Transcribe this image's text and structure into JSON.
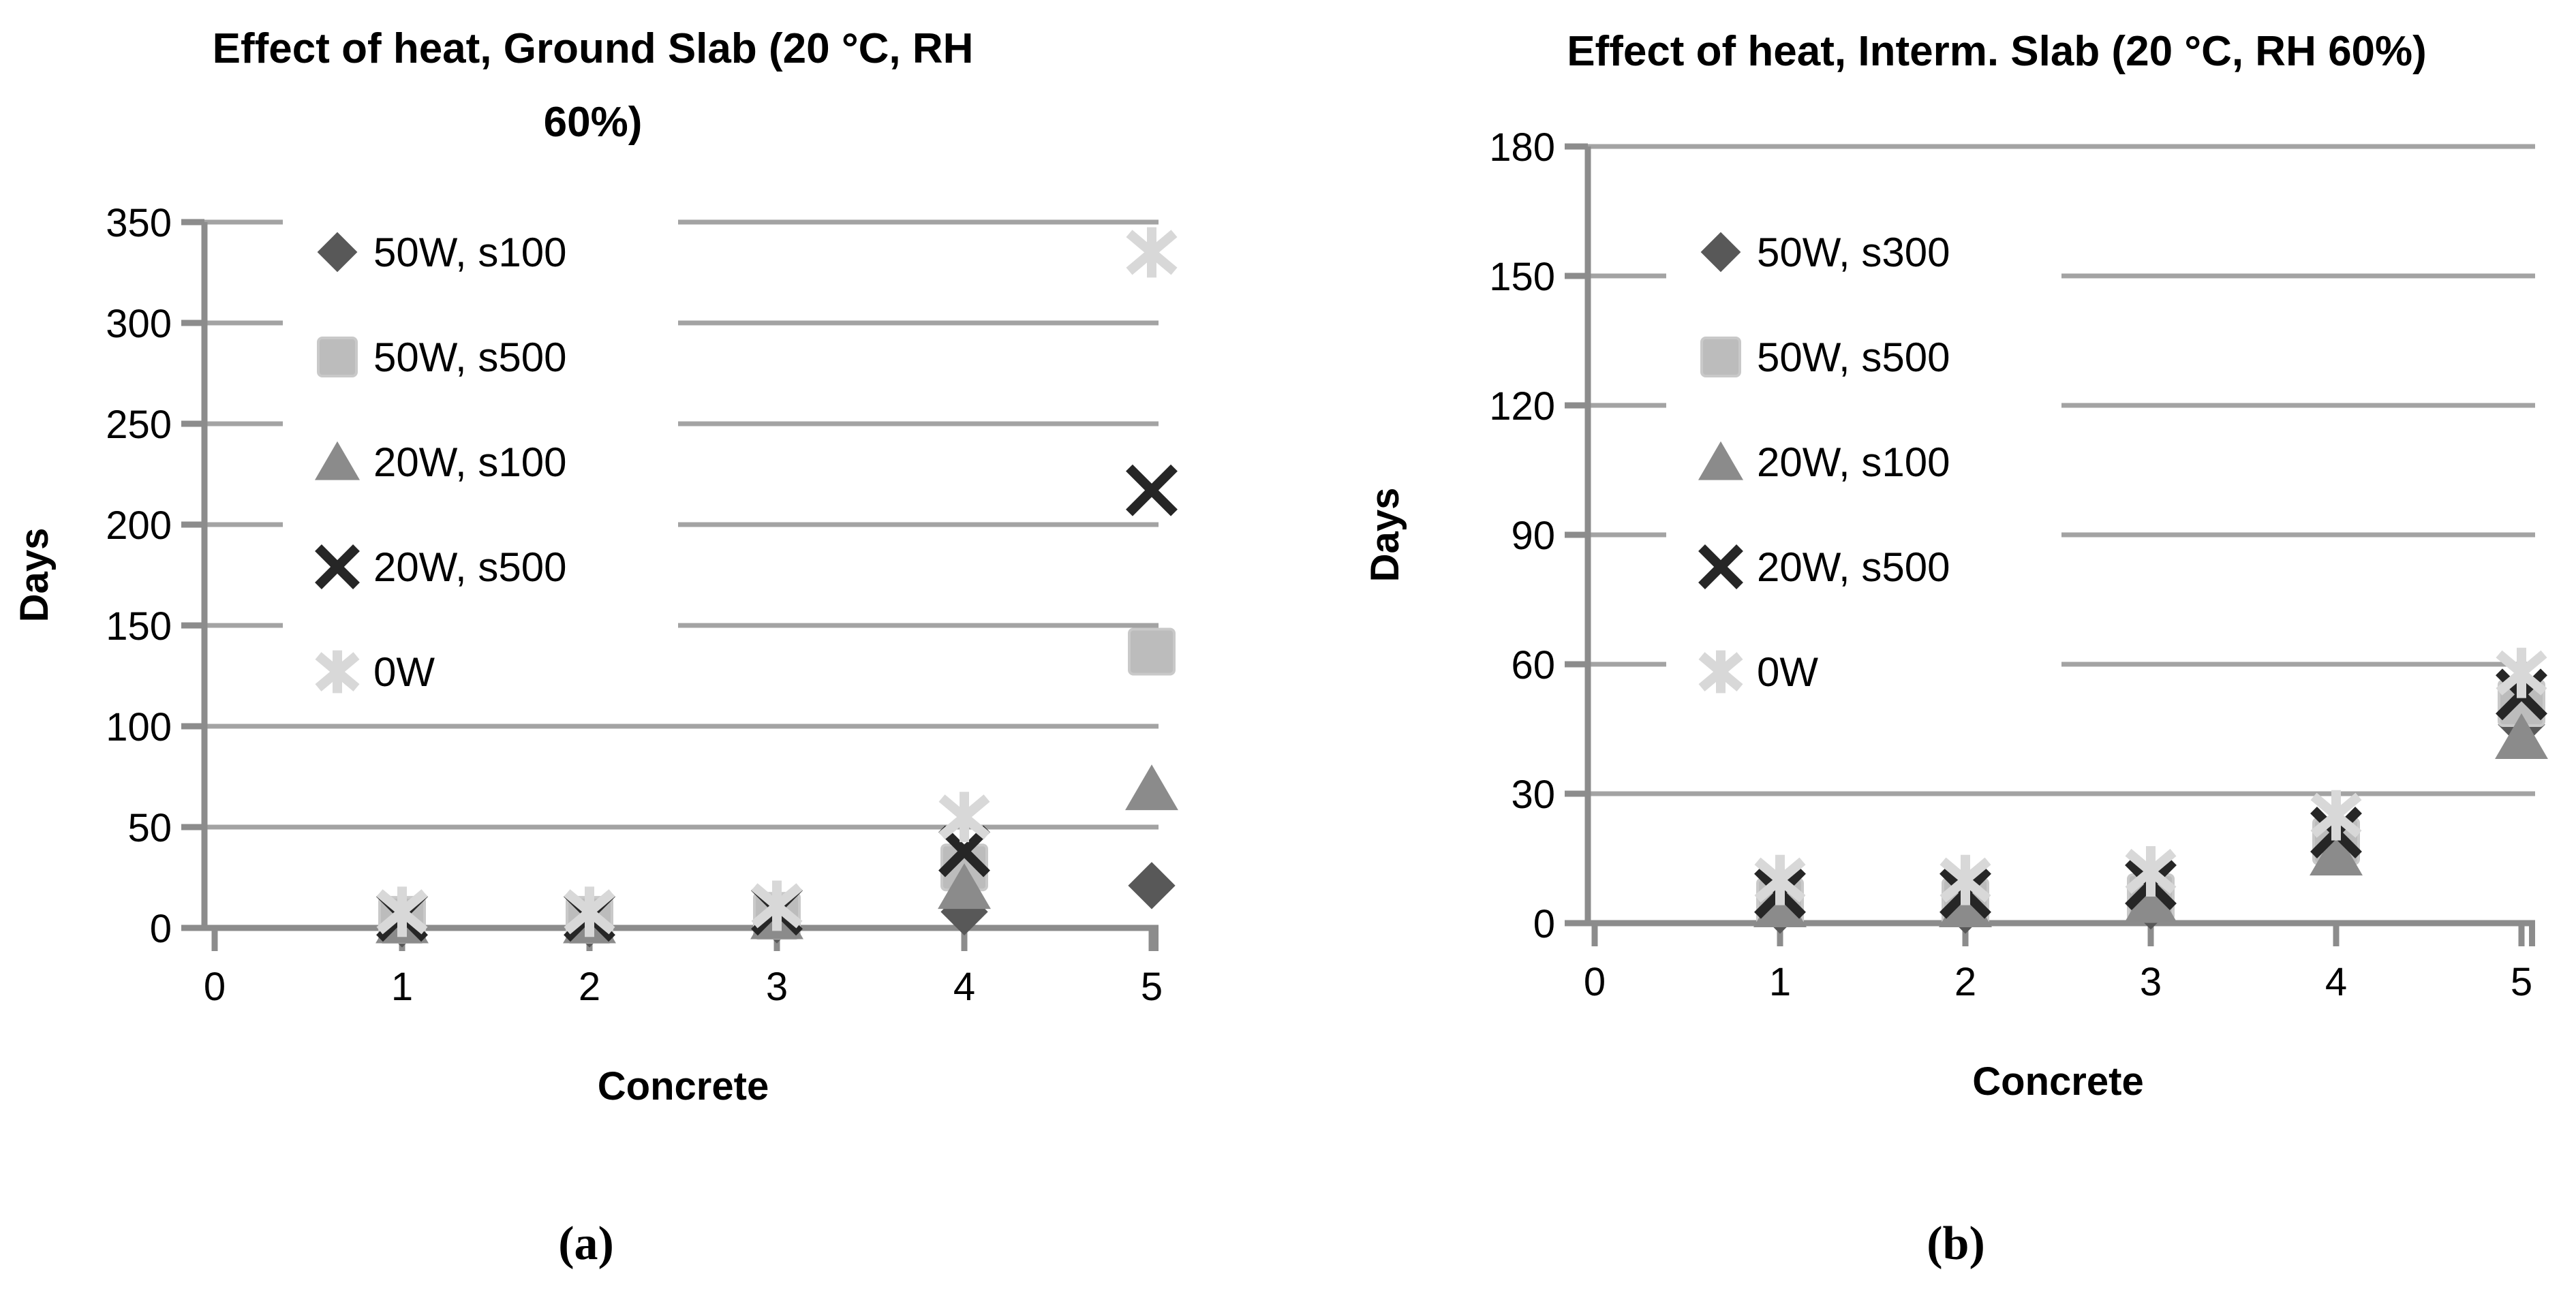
{
  "figure": {
    "captions": {
      "a": "(a)",
      "b": "(b)"
    }
  },
  "colors": {
    "gridline": "#a3a3a3",
    "axis": "#8c8c8c",
    "series_50w_s100": "#585858",
    "series_50w_s500": "#bcbcbc",
    "series_20w_s100": "#8b8b8b",
    "series_20w_s500": "#262626",
    "series_0w": "#d8d8d8"
  },
  "chart_data": [
    {
      "id": "a",
      "type": "scatter",
      "title": "Effect of heat, Ground Slab (20 °C, RH 60%)",
      "title_lines": [
        "Effect of heat, Ground Slab (20 °C, RH",
        "60%)"
      ],
      "xlabel": "Concrete",
      "ylabel": "Days",
      "x": [
        1,
        2,
        3,
        4,
        5
      ],
      "xticks": [
        0,
        1,
        2,
        3,
        4,
        5
      ],
      "yticks": [
        0,
        50,
        100,
        150,
        200,
        250,
        300,
        350
      ],
      "xlim": [
        0,
        5.05
      ],
      "ylim": [
        0,
        350
      ],
      "grid": "horizontal",
      "legend_position": "upper-left-inside",
      "series": [
        {
          "name": "50W, s100",
          "marker": "diamond",
          "color": "#585858",
          "values": [
            2,
            2,
            4,
            8,
            21
          ]
        },
        {
          "name": "50W, s500",
          "marker": "square",
          "color": "#bcbcbc",
          "values": [
            4,
            4,
            6,
            30,
            137
          ]
        },
        {
          "name": "20W, s100",
          "marker": "triangle",
          "color": "#8b8b8b",
          "values": [
            3,
            3,
            5,
            20,
            69
          ]
        },
        {
          "name": "20W, s500",
          "marker": "x",
          "color": "#262626",
          "values": [
            6,
            6,
            9,
            38,
            217
          ]
        },
        {
          "name": "0W",
          "marker": "asterisk",
          "color": "#d8d8d8",
          "values": [
            8,
            8,
            11,
            55,
            335
          ]
        }
      ]
    },
    {
      "id": "b",
      "type": "scatter",
      "title": "Effect of heat, Interm. Slab (20 °C, RH 60%)",
      "title_lines": [
        "Effect of heat, Interm. Slab (20 °C, RH 60%)"
      ],
      "xlabel": "Concrete",
      "ylabel": "Days",
      "x": [
        1,
        2,
        3,
        4,
        5
      ],
      "xticks": [
        0,
        1,
        2,
        3,
        4,
        5
      ],
      "yticks": [
        0,
        30,
        60,
        90,
        120,
        150,
        180
      ],
      "xlim": [
        0,
        5.05
      ],
      "ylim": [
        0,
        180
      ],
      "grid": "horizontal",
      "legend_position": "upper-left-inside",
      "series": [
        {
          "name": "50W, s300",
          "marker": "diamond",
          "color": "#585858",
          "values": [
            3,
            3,
            4,
            18,
            46
          ]
        },
        {
          "name": "50W, s500",
          "marker": "square",
          "color": "#bcbcbc",
          "values": [
            5,
            5,
            6,
            19,
            51
          ]
        },
        {
          "name": "20W, s100",
          "marker": "triangle",
          "color": "#8b8b8b",
          "values": [
            4,
            4,
            5,
            16,
            43
          ]
        },
        {
          "name": "20W, s500",
          "marker": "x",
          "color": "#262626",
          "values": [
            7,
            7,
            9,
            21,
            53
          ]
        },
        {
          "name": "0W",
          "marker": "asterisk",
          "color": "#d8d8d8",
          "values": [
            10,
            10,
            12,
            25,
            58
          ]
        }
      ]
    }
  ]
}
